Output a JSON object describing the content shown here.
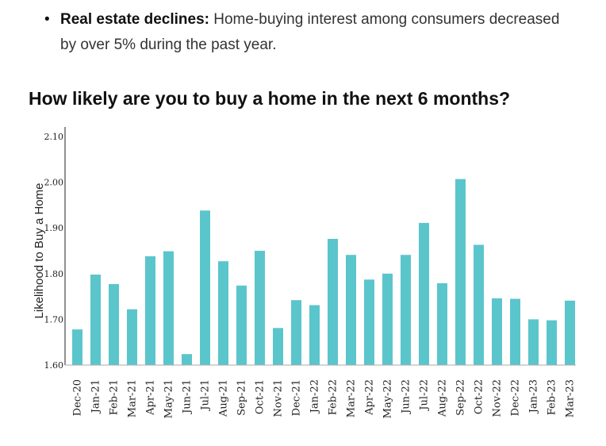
{
  "bullet": {
    "strong": "Real estate declines:",
    "text": " Home-buying interest among consumers decreased by over 5% during the past year."
  },
  "chart_data": {
    "type": "bar",
    "title": "How likely are you to buy a home in the next 6 months?",
    "xlabel": "",
    "ylabel": "Likelihood to Buy a Home",
    "ylim": [
      1.6,
      2.1
    ],
    "yticks": [
      "1.60",
      "1.70",
      "1.80",
      "1.90",
      "2.00",
      "2.10"
    ],
    "bar_color": "#5bc5cc",
    "categories": [
      "Dec-20",
      "Jan-21",
      "Feb-21",
      "Mar-21",
      "Apr-21",
      "May-21",
      "Jun-21",
      "Jul-21",
      "Aug-21",
      "Sep-21",
      "Oct-21",
      "Nov-21",
      "Dec-21",
      "Jan-22",
      "Feb-22",
      "Mar-22",
      "Apr-22",
      "May-22",
      "Jun-22",
      "Jul-22",
      "Aug-22",
      "Sep-22",
      "Oct-22",
      "Nov-22",
      "Dec-22",
      "Jan-23",
      "Feb-23",
      "Mar-23"
    ],
    "values": [
      1.678,
      1.798,
      1.777,
      1.722,
      1.838,
      1.849,
      1.624,
      1.938,
      1.827,
      1.774,
      1.85,
      1.681,
      1.742,
      1.731,
      1.876,
      1.841,
      1.787,
      1.8,
      1.841,
      1.911,
      1.779,
      2.007,
      1.863,
      1.746,
      1.745,
      1.7,
      1.698,
      1.741
    ],
    "grid": false,
    "legend": "none"
  }
}
